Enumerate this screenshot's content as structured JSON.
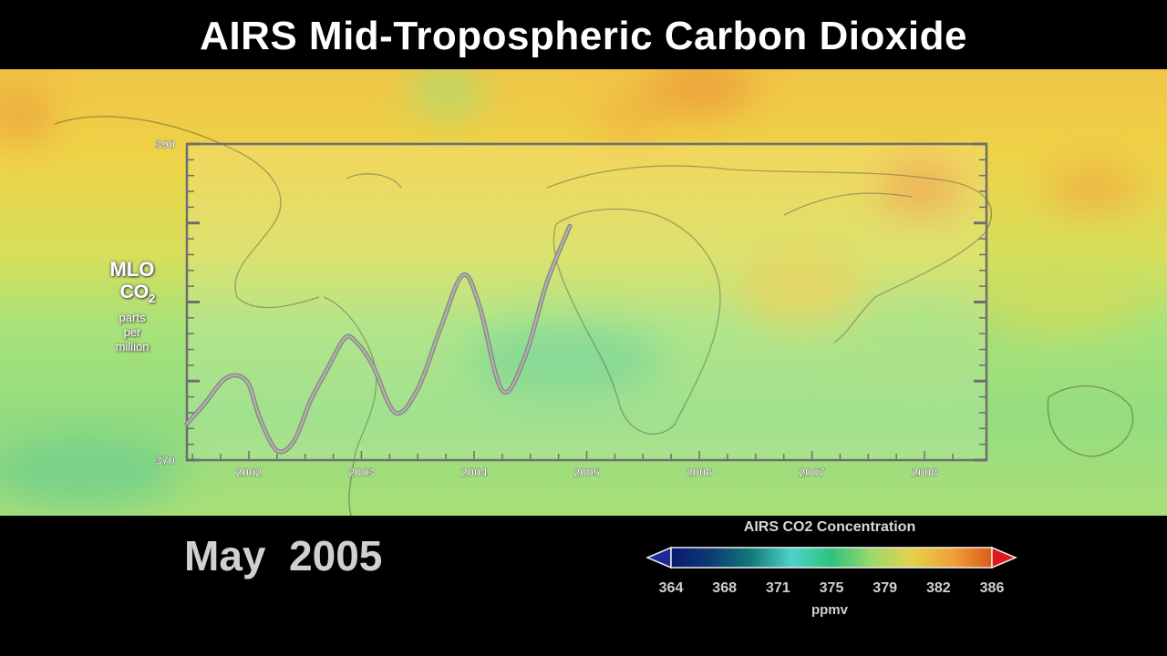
{
  "title": "AIRS Mid-Tropospheric Carbon Dioxide",
  "date_label": "May  2005",
  "ylabel": {
    "line1": "MLO",
    "line2": "CO",
    "line2_sub": "2",
    "line3": "parts",
    "line4": "per",
    "line5": "million"
  },
  "chart_data": {
    "type": "line",
    "ylim": [
      370,
      390
    ],
    "y_tick_labels": [
      "390",
      "370"
    ],
    "xlim": [
      2001.45,
      2008.55
    ],
    "x_tick_labels": [
      "2002",
      "2003",
      "2004",
      "2005",
      "2006",
      "2007",
      "2008"
    ],
    "series": [
      {
        "x": [
          2001.45,
          2001.6,
          2001.8,
          2001.98,
          2002.1,
          2002.25,
          2002.4,
          2002.55,
          2002.7,
          2002.85,
          2002.95,
          2003.1,
          2003.3,
          2003.5,
          2003.7,
          2003.9,
          2004.05,
          2004.25,
          2004.45,
          2004.65,
          2004.85
        ],
        "y": [
          372.3,
          373.5,
          375.2,
          375.0,
          372.6,
          370.6,
          371.2,
          373.8,
          375.8,
          377.7,
          377.5,
          376.0,
          373.0,
          374.5,
          378.3,
          381.7,
          379.7,
          374.4,
          376.5,
          381.3,
          384.8
        ]
      }
    ]
  },
  "colorbar": {
    "title": "AIRS CO2 Concentration",
    "ticks": [
      "364",
      "368",
      "371",
      "375",
      "379",
      "382",
      "386"
    ],
    "unit": "ppmv",
    "colors": [
      "#0a1a6e",
      "#0d3b73",
      "#137a7a",
      "#4fd3c8",
      "#2ec27e",
      "#9bd96a",
      "#e4d24a",
      "#f0a23a",
      "#dd5a18"
    ],
    "under_color": "#1e2a9a",
    "over_color": "#e01a1a"
  }
}
